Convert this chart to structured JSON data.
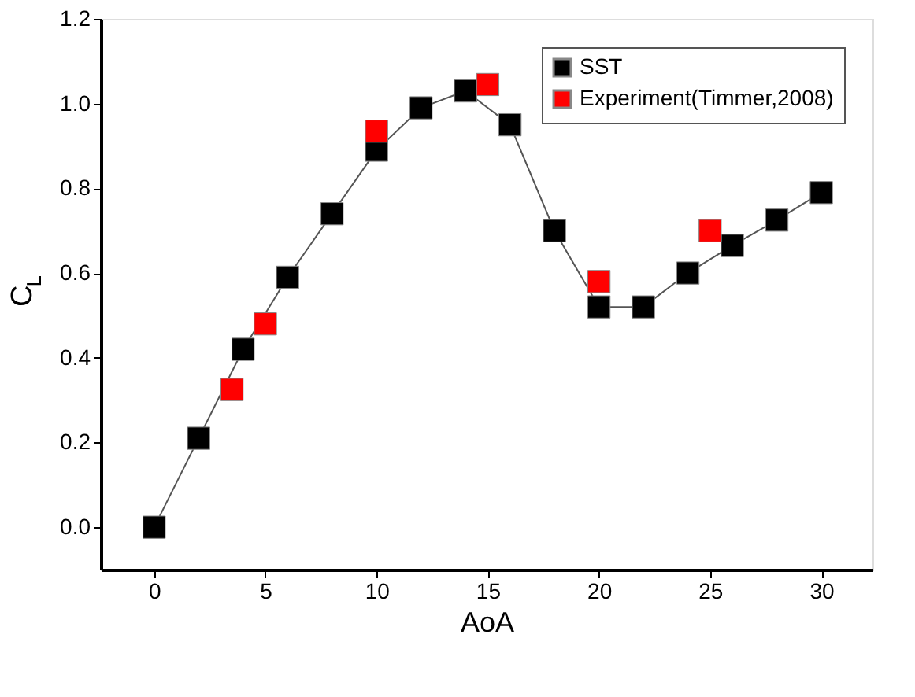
{
  "chart_data": {
    "type": "line",
    "xlabel": "AoA",
    "ylabel": "C$_{L}$",
    "xlim": [
      -2.4,
      32.3
    ],
    "xticks": [
      0,
      5,
      10,
      15,
      20,
      25,
      30
    ],
    "ylim": [
      -0.1,
      1.2
    ],
    "yticks": [
      {
        "value": 0,
        "label": "0.0"
      },
      {
        "value": 0.2,
        "label": "0.2"
      },
      {
        "value": 0.4,
        "label": "0.4"
      },
      {
        "value": 0.6,
        "label": "0.6"
      },
      {
        "value": 0.8,
        "label": "0.8"
      },
      {
        "value": 1.0,
        "label": "1.0"
      },
      {
        "value": 1.2,
        "label": "1.2"
      }
    ],
    "grid": false,
    "legend": "top right",
    "marker": "square",
    "line_style": "solid",
    "series": [
      {
        "name": "SST",
        "color": "#000000",
        "x": [
          0,
          2,
          4,
          6,
          8,
          10,
          12,
          14,
          16,
          18,
          20,
          22,
          24,
          26,
          28,
          30
        ],
        "values": [
          0,
          0.21,
          0.42,
          0.59,
          0.74,
          0.89,
          0.99,
          1.03,
          0.95,
          0.7,
          0.52,
          0.52,
          0.6,
          0.665,
          0.725,
          0.79
        ]
      },
      {
        "name": "Experiment(Timmer,2008)",
        "type": "scatter",
        "color": "#ff0000",
        "x": [
          3.5,
          5,
          10,
          15,
          20,
          25
        ],
        "values": [
          0.325,
          0.48,
          0.935,
          1.045,
          0.58,
          0.7
        ]
      }
    ]
  }
}
